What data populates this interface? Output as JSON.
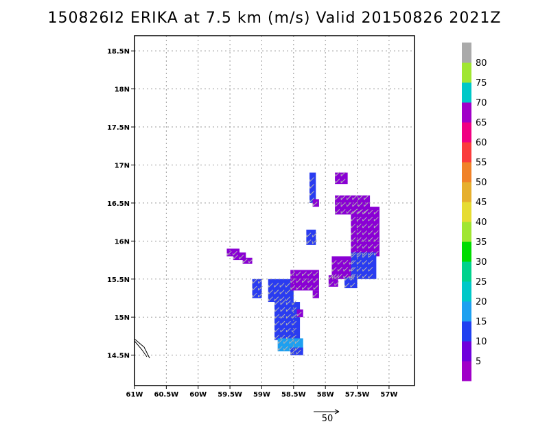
{
  "title": "150826I2 ERIKA at 7.5 km (m/s) Valid 20150826 2021Z",
  "chart_data": {
    "type": "heatmap",
    "title": "150826I2 ERIKA at 7.5 km (m/s) Valid 20150826 2021Z",
    "xlim": [
      -61.0,
      -56.6
    ],
    "ylim": [
      14.1,
      18.7
    ],
    "grid": true,
    "x_ticks": [
      {
        "value": -61.0,
        "label": "61W"
      },
      {
        "value": -60.5,
        "label": "60.5W"
      },
      {
        "value": -60.0,
        "label": "60W"
      },
      {
        "value": -59.5,
        "label": "59.5W"
      },
      {
        "value": -59.0,
        "label": "59W"
      },
      {
        "value": -58.5,
        "label": "58.5W"
      },
      {
        "value": -58.0,
        "label": "58W"
      },
      {
        "value": -57.5,
        "label": "57.5W"
      },
      {
        "value": -57.0,
        "label": "57W"
      }
    ],
    "y_ticks": [
      {
        "value": 14.5,
        "label": "14.5N"
      },
      {
        "value": 15.0,
        "label": "15N"
      },
      {
        "value": 15.5,
        "label": "15.5N"
      },
      {
        "value": 16.0,
        "label": "16N"
      },
      {
        "value": 16.5,
        "label": "16.5N"
      },
      {
        "value": 17.0,
        "label": "17N"
      },
      {
        "value": 17.5,
        "label": "17.5N"
      },
      {
        "value": 18.0,
        "label": "18N"
      },
      {
        "value": 18.5,
        "label": "18.5N"
      }
    ],
    "colorbar": {
      "labels": [
        "5",
        "10",
        "15",
        "20",
        "25",
        "30",
        "35",
        "40",
        "45",
        "50",
        "55",
        "60",
        "65",
        "70",
        "75",
        "80"
      ],
      "colors": [
        "#a000c8",
        "#6e00dc",
        "#2040f0",
        "#1ea0f0",
        "#00c8c8",
        "#00d28c",
        "#00dc00",
        "#a0e632",
        "#e6dc32",
        "#e6af2d",
        "#f08228",
        "#fa3c3c",
        "#f00082",
        "#a000c8",
        "#00c8c8",
        "#a0e632",
        "#aaaaaa"
      ]
    },
    "regions": [
      {
        "speed": "5-10",
        "color": "#8a00d4",
        "lon": [
          -59.55,
          -59.35
        ],
        "lat": [
          15.8,
          15.9
        ]
      },
      {
        "speed": "5-10",
        "color": "#8a00d4",
        "lon": [
          -59.45,
          -59.25
        ],
        "lat": [
          15.75,
          15.85
        ]
      },
      {
        "speed": "5-10",
        "color": "#8a00d4",
        "lon": [
          -59.3,
          -59.15
        ],
        "lat": [
          15.7,
          15.78
        ]
      },
      {
        "speed": "10-15",
        "color": "#2a3cf0",
        "lon": [
          -59.15,
          -59.0
        ],
        "lat": [
          15.25,
          15.5
        ]
      },
      {
        "speed": "10-15",
        "color": "#2a3cf0",
        "lon": [
          -58.9,
          -58.5
        ],
        "lat": [
          15.2,
          15.5
        ]
      },
      {
        "speed": "10-15",
        "color": "#2a3cf0",
        "lon": [
          -58.8,
          -58.4
        ],
        "lat": [
          14.7,
          15.2
        ]
      },
      {
        "speed": "15-20",
        "color": "#1ea0f0",
        "lon": [
          -58.75,
          -58.35
        ],
        "lat": [
          14.55,
          14.72
        ]
      },
      {
        "speed": "10-15",
        "color": "#2a3cf0",
        "lon": [
          -58.55,
          -58.35
        ],
        "lat": [
          14.5,
          14.6
        ]
      },
      {
        "speed": "5-10",
        "color": "#8a00d4",
        "lon": [
          -58.55,
          -58.1
        ],
        "lat": [
          15.35,
          15.62
        ]
      },
      {
        "speed": "5-10",
        "color": "#8a00d4",
        "lon": [
          -58.2,
          -58.1
        ],
        "lat": [
          15.25,
          15.35
        ]
      },
      {
        "speed": "5-10",
        "color": "#8a00d4",
        "lon": [
          -58.45,
          -58.35
        ],
        "lat": [
          15.0,
          15.1
        ]
      },
      {
        "speed": "10-15",
        "color": "#2a3cf0",
        "lon": [
          -58.25,
          -58.15
        ],
        "lat": [
          16.5,
          16.9
        ]
      },
      {
        "speed": "5-10",
        "color": "#8a00d4",
        "lon": [
          -58.2,
          -58.1
        ],
        "lat": [
          16.45,
          16.55
        ]
      },
      {
        "speed": "10-15",
        "color": "#2a3cf0",
        "lon": [
          -58.3,
          -58.15
        ],
        "lat": [
          15.95,
          16.15
        ]
      },
      {
        "speed": "5-10",
        "color": "#8a00d4",
        "lon": [
          -57.85,
          -57.65
        ],
        "lat": [
          16.75,
          16.9
        ]
      },
      {
        "speed": "5-10",
        "color": "#8a00d4",
        "lon": [
          -57.85,
          -57.3
        ],
        "lat": [
          16.35,
          16.6
        ]
      },
      {
        "speed": "5-10",
        "color": "#8a00d4",
        "lon": [
          -57.6,
          -57.15
        ],
        "lat": [
          15.8,
          16.45
        ]
      },
      {
        "speed": "5-10",
        "color": "#8a00d4",
        "lon": [
          -57.9,
          -57.55
        ],
        "lat": [
          15.5,
          15.8
        ]
      },
      {
        "speed": "10-15",
        "color": "#2a3cf0",
        "lon": [
          -57.6,
          -57.2
        ],
        "lat": [
          15.5,
          15.85
        ]
      },
      {
        "speed": "10-15",
        "color": "#2a3cf0",
        "lon": [
          -57.7,
          -57.5
        ],
        "lat": [
          15.38,
          15.52
        ]
      },
      {
        "speed": "5-10",
        "color": "#8a00d4",
        "lon": [
          -57.95,
          -57.8
        ],
        "lat": [
          15.4,
          15.55
        ]
      }
    ],
    "reference_vector_label": "50"
  }
}
